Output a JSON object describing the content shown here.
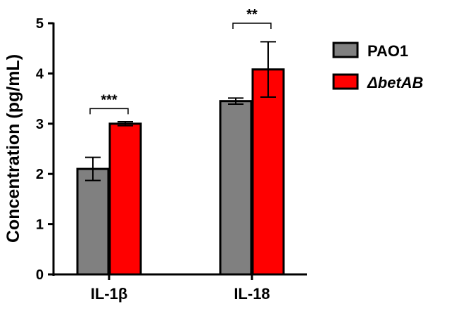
{
  "chart_data": {
    "type": "bar",
    "ylabel": "Concentration  (pg/mL)",
    "xlabel": "",
    "ylim": [
      0,
      5
    ],
    "yticks": [
      0,
      1,
      2,
      3,
      4,
      5
    ],
    "categories": [
      "IL-1β",
      "IL-18"
    ],
    "legend_position": "top-right",
    "series": [
      {
        "name": "PAO1",
        "color": "#808080",
        "italic": false,
        "values": [
          2.1,
          3.45
        ],
        "errors": [
          0.23,
          0.06
        ]
      },
      {
        "name": "ΔbetAB",
        "color": "#ff0000",
        "italic": true,
        "values": [
          3.0,
          4.08
        ],
        "errors": [
          0.04,
          0.55
        ]
      }
    ],
    "significance": [
      {
        "category_index": 0,
        "label": "***",
        "y": 3.3
      },
      {
        "category_index": 1,
        "label": "**",
        "y": 5.0
      }
    ]
  }
}
